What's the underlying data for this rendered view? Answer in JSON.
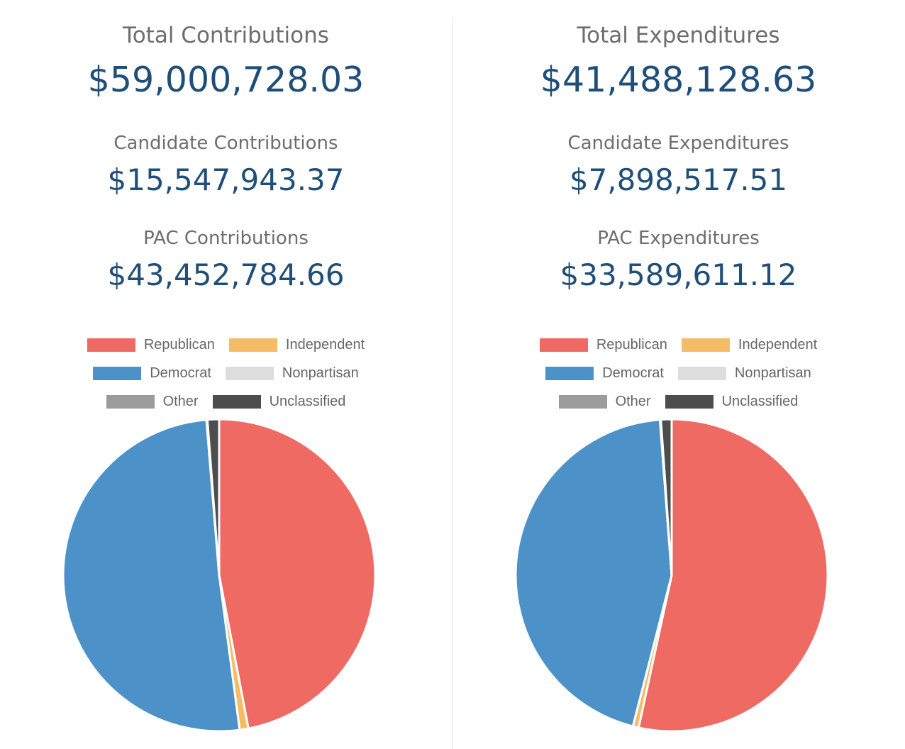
{
  "contributions": {
    "total_label": "Total Contributions",
    "total_value": "$59,000,728.03",
    "candidate_label": "Candidate Contributions",
    "candidate_value": "$15,547,943.37",
    "pac_label": "PAC Contributions",
    "pac_value": "$43,452,784.66"
  },
  "expenditures": {
    "total_label": "Total Expenditures",
    "total_value": "$41,488,128.63",
    "candidate_label": "Candidate Expenditures",
    "candidate_value": "$7,898,517.51",
    "pac_label": "PAC Expenditures",
    "pac_value": "$33,589,611.12"
  },
  "legend": [
    {
      "label": "Republican",
      "color": "#ee6a62"
    },
    {
      "label": "Independent",
      "color": "#f4bc63"
    },
    {
      "label": "Democrat",
      "color": "#4c92c9"
    },
    {
      "label": "Nonpartisan",
      "color": "#dddddd"
    },
    {
      "label": "Other",
      "color": "#9b9b9b"
    },
    {
      "label": "Unclassified",
      "color": "#4d4d4d"
    }
  ],
  "chart_data": [
    {
      "type": "pie",
      "categories": [
        "Republican",
        "Independent",
        "Democrat",
        "Nonpartisan",
        "Other",
        "Unclassified"
      ],
      "values": [
        47.0,
        0.9,
        50.8,
        0.0,
        0.1,
        1.2
      ],
      "colors": [
        "#ee6a62",
        "#f4bc63",
        "#4c92c9",
        "#dddddd",
        "#9b9b9b",
        "#4d4d4d"
      ],
      "legend_position": "top"
    },
    {
      "type": "pie",
      "categories": [
        "Republican",
        "Independent",
        "Democrat",
        "Nonpartisan",
        "Other",
        "Unclassified"
      ],
      "values": [
        53.4,
        0.6,
        44.8,
        0.0,
        0.1,
        1.1
      ],
      "colors": [
        "#ee6a62",
        "#f4bc63",
        "#4c92c9",
        "#dddddd",
        "#9b9b9b",
        "#4d4d4d"
      ],
      "legend_position": "top"
    }
  ]
}
